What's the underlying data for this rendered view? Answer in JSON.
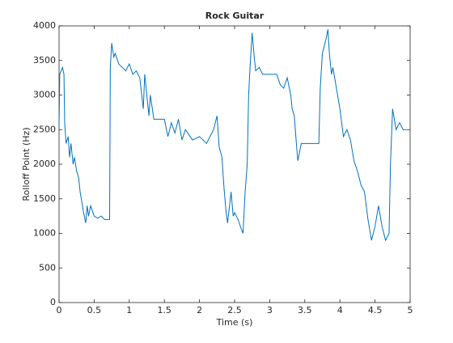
{
  "chart_data": {
    "type": "line",
    "title": "Rock Guitar",
    "xlabel": "Time (s)",
    "ylabel": "Rolloff Point (Hz)",
    "x": [
      0,
      0.01,
      0.03,
      0.05,
      0.07,
      0.08,
      0.1,
      0.13,
      0.15,
      0.17,
      0.2,
      0.22,
      0.25,
      0.28,
      0.3,
      0.35,
      0.38,
      0.4,
      0.42,
      0.45,
      0.5,
      0.55,
      0.6,
      0.65,
      0.72,
      0.73,
      0.75,
      0.78,
      0.8,
      0.85,
      0.9,
      0.95,
      1.0,
      1.05,
      1.1,
      1.15,
      1.2,
      1.22,
      1.25,
      1.28,
      1.3,
      1.35,
      1.4,
      1.5,
      1.55,
      1.6,
      1.65,
      1.7,
      1.75,
      1.8,
      1.9,
      2.0,
      2.1,
      2.15,
      2.2,
      2.25,
      2.28,
      2.32,
      2.35,
      2.38,
      2.4,
      2.45,
      2.48,
      2.5,
      2.55,
      2.6,
      2.62,
      2.65,
      2.68,
      2.7,
      2.72,
      2.75,
      2.78,
      2.8,
      2.85,
      2.9,
      3.0,
      3.1,
      3.15,
      3.2,
      3.25,
      3.3,
      3.32,
      3.35,
      3.38,
      3.4,
      3.45,
      3.5,
      3.6,
      3.7,
      3.72,
      3.75,
      3.8,
      3.83,
      3.85,
      3.88,
      3.9,
      3.95,
      4.0,
      4.05,
      4.1,
      4.15,
      4.2,
      4.25,
      4.3,
      4.35,
      4.4,
      4.45,
      4.5,
      4.55,
      4.6,
      4.65,
      4.7,
      4.72,
      4.75,
      4.8,
      4.85,
      4.9,
      4.95
    ],
    "series": [
      {
        "color": "#0072bd",
        "values": [
          2550,
          3300,
          3350,
          3400,
          3300,
          2600,
          2300,
          2400,
          2100,
          2300,
          2000,
          2100,
          1900,
          1800,
          1600,
          1300,
          1150,
          1400,
          1250,
          1400,
          1250,
          1220,
          1250,
          1200,
          1200,
          3400,
          3750,
          3550,
          3600,
          3450,
          3400,
          3350,
          3450,
          3300,
          3350,
          3250,
          2800,
          3300,
          3000,
          2700,
          3000,
          2650,
          2650,
          2650,
          2400,
          2600,
          2450,
          2650,
          2350,
          2500,
          2350,
          2400,
          2300,
          2400,
          2500,
          2700,
          2250,
          2100,
          1650,
          1300,
          1150,
          1600,
          1250,
          1300,
          1200,
          1050,
          1000,
          1600,
          2000,
          3000,
          3400,
          3900,
          3550,
          3350,
          3400,
          3300,
          3300,
          3300,
          3150,
          3100,
          3250,
          3000,
          2800,
          2700,
          2300,
          2050,
          2300,
          2300,
          2300,
          2300,
          3100,
          3600,
          3800,
          3950,
          3600,
          3300,
          3400,
          3100,
          2800,
          2400,
          2500,
          2350,
          2050,
          1900,
          1700,
          1600,
          1200,
          900,
          1100,
          1400,
          1100,
          900,
          1000,
          2000,
          2800,
          2500,
          2600,
          2500,
          2500
        ]
      }
    ],
    "xlim": [
      0,
      5
    ],
    "ylim": [
      0,
      4000
    ],
    "xticks": [
      0,
      0.5,
      1,
      1.5,
      2,
      2.5,
      3,
      3.5,
      4,
      4.5,
      5
    ],
    "yticks": [
      0,
      500,
      1000,
      1500,
      2000,
      2500,
      3000,
      3500,
      4000
    ]
  }
}
